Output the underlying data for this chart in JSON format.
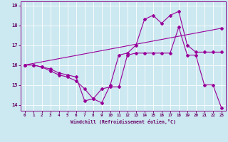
{
  "xlabel": "Windchill (Refroidissement éolien,°C)",
  "background_color": "#cce8f0",
  "grid_color": "#ffffff",
  "line_color": "#990099",
  "xlim": [
    -0.5,
    23.5
  ],
  "ylim": [
    13.7,
    19.2
  ],
  "xticks": [
    0,
    1,
    2,
    3,
    4,
    5,
    6,
    7,
    8,
    9,
    10,
    11,
    12,
    13,
    14,
    15,
    16,
    17,
    18,
    19,
    20,
    21,
    22,
    23
  ],
  "yticks": [
    14,
    15,
    16,
    17,
    18,
    19
  ],
  "line1_x": [
    0,
    1,
    2,
    3,
    4,
    5,
    6,
    7,
    8,
    9,
    10,
    11,
    12,
    13,
    14,
    15,
    16,
    17,
    18,
    19,
    20,
    21,
    22,
    23
  ],
  "line1_y": [
    16.0,
    16.0,
    15.9,
    15.7,
    15.5,
    15.4,
    15.2,
    14.8,
    14.3,
    14.1,
    15.0,
    16.5,
    16.6,
    17.0,
    18.3,
    18.5,
    18.1,
    18.5,
    18.7,
    17.0,
    16.65,
    16.65,
    16.65,
    16.65
  ],
  "line2_x": [
    0,
    1,
    2,
    3,
    4,
    5,
    6,
    7,
    8,
    9,
    10,
    11,
    12,
    13,
    14,
    15,
    16,
    17,
    18,
    19,
    20,
    21,
    22,
    23
  ],
  "line2_y": [
    16.0,
    16.0,
    15.9,
    15.8,
    15.6,
    15.5,
    15.4,
    14.2,
    14.3,
    14.8,
    14.9,
    14.9,
    16.5,
    16.6,
    16.6,
    16.6,
    16.6,
    16.6,
    17.9,
    16.5,
    16.5,
    15.0,
    15.0,
    13.85
  ],
  "line3_x": [
    0,
    23
  ],
  "line3_y": [
    16.0,
    17.85
  ],
  "marker": "D",
  "markersize": 2.0,
  "linewidth": 0.8
}
